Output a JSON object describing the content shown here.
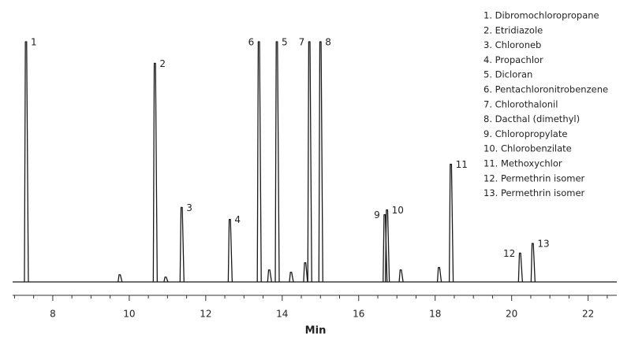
{
  "chart_data": {
    "type": "chromatogram",
    "x": [
      7.3,
      9.75,
      10.67,
      10.95,
      11.37,
      12.63,
      13.39,
      13.66,
      13.86,
      14.23,
      14.6,
      14.71,
      15.0,
      16.68,
      16.74,
      17.1,
      18.1,
      18.41,
      20.22,
      20.55
    ],
    "values": [
      100,
      3,
      91,
      2,
      31,
      26,
      100,
      5,
      100,
      4,
      8,
      100,
      100,
      28,
      30,
      5,
      6,
      49,
      12,
      16
    ],
    "peak_labels": [
      "1",
      null,
      "2",
      null,
      "3",
      "4",
      "6",
      null,
      "5",
      null,
      null,
      "7",
      "8",
      "9",
      "10",
      null,
      null,
      "11",
      "12",
      "13"
    ],
    "color": "#1a1a1a",
    "xlim": [
      6.95,
      22.75
    ],
    "ylim": [
      0,
      100
    ],
    "xticks": [
      8,
      10,
      12,
      14,
      16,
      18,
      20,
      22
    ],
    "xticks_minor": [
      7,
      7.5,
      8.5,
      9,
      9.5,
      10.5,
      11,
      11.5,
      12.5,
      13,
      13.5,
      14.5,
      15,
      15.5,
      16.5,
      17,
      17.5,
      18.5,
      19,
      19.5,
      20.5,
      21,
      21.5,
      22.5
    ],
    "xlabel": "Min",
    "legend": [
      "1.  Dibromochloropropane",
      "2.  Etridiazole",
      "3.  Chloroneb",
      "4.  Propachlor",
      "5.  Dicloran",
      "6.  Pentachloronitrobenzene",
      "7.  Chlorothalonil",
      "8.  Dacthal (dimethyl)",
      "9.  Chloropropylate",
      "10.  Chlorobenzilate",
      "11.  Methoxychlor",
      "12.  Permethrin isomer",
      "13.  Permethrin isomer"
    ]
  }
}
